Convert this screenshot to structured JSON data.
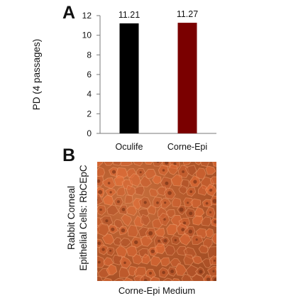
{
  "panel_a": {
    "letter": "A"
  },
  "panel_b": {
    "letter": "B",
    "side_label_lines": [
      "Rabbit Corneal",
      "Epithelial Cells: RbCEpC"
    ],
    "image_caption": "Corne-Epi Medium",
    "image_description": "phase-contrast micrograph of cobblestone epithelial cells"
  },
  "chart_data": {
    "type": "bar",
    "categories": [
      "Oculife",
      "Corne-Epi"
    ],
    "values": [
      11.21,
      11.27
    ],
    "data_labels": [
      "11.21",
      "11.27"
    ],
    "colors": [
      "#000000",
      "#7a0000"
    ],
    "title": "",
    "xlabel": "",
    "ylabel": "PD (4 passages)",
    "ylim": [
      0,
      12
    ],
    "yticks": [
      0,
      2,
      4,
      6,
      8,
      10,
      12
    ],
    "grid": false,
    "legend": "none"
  }
}
